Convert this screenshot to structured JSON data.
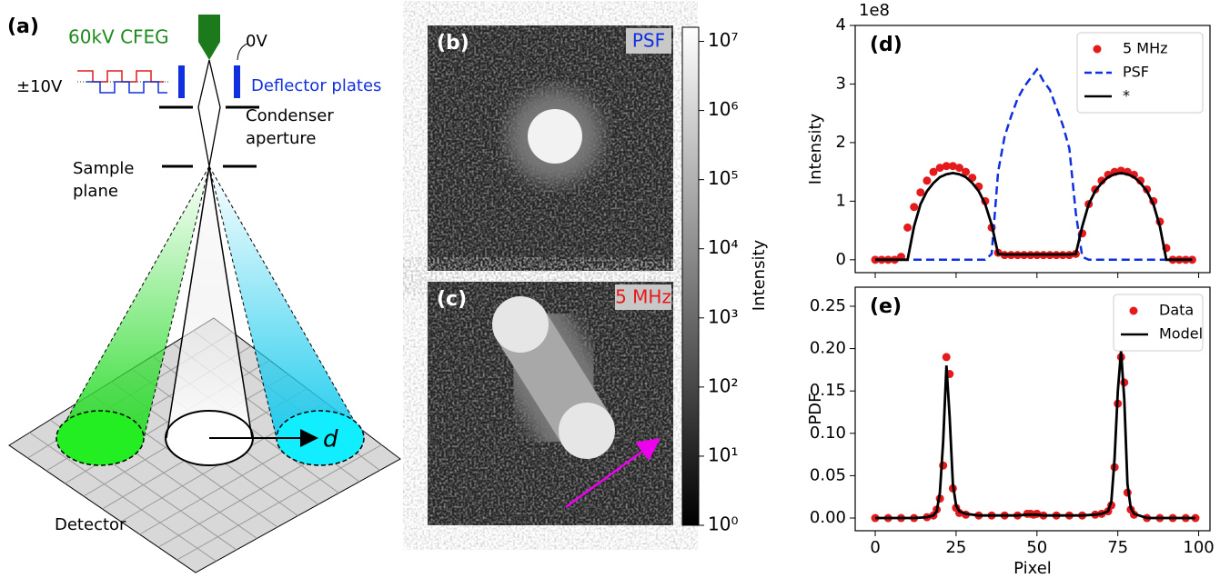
{
  "diagram": {
    "panel_label": "(a)",
    "source": "60kV CFEG",
    "voltage": "±10V",
    "ground": "0V",
    "deflector": "Deflector plates",
    "condenser": [
      "Condenser",
      "aperture"
    ],
    "sample": [
      "Sample",
      "plane"
    ],
    "displacement": "d",
    "detector": "Detector"
  },
  "images": [
    {
      "panel_label": "(b)",
      "tag": "PSF"
    },
    {
      "panel_label": "(c)",
      "tag": "5 MHz"
    }
  ],
  "colorbar": {
    "label": "Intensity",
    "scale": "log",
    "lim": [
      1,
      16000000
    ],
    "ticks": [
      {
        "value": 1,
        "label": "10⁰"
      },
      {
        "value": 10,
        "label": "10¹"
      },
      {
        "value": 100,
        "label": "10²"
      },
      {
        "value": 1000,
        "label": "10³"
      },
      {
        "value": 10000,
        "label": "10⁴"
      },
      {
        "value": 100000,
        "label": "10⁵"
      },
      {
        "value": 1000000,
        "label": "10⁶"
      },
      {
        "value": 10000000,
        "label": "10⁷"
      }
    ]
  },
  "chart_data": [
    {
      "type": "line",
      "panel_label": "(d)",
      "ylabel": "Intensity",
      "offset_label": "1e8",
      "xlim": [
        -6.2,
        103.5
      ],
      "ylim": [
        -0.22,
        4
      ],
      "xticks": [
        0,
        25,
        50,
        75,
        100
      ],
      "show_xtick_labels": false,
      "yticks": [
        0,
        1,
        2,
        3,
        4
      ],
      "legend": "upper right",
      "x": [
        0,
        2,
        4,
        6,
        8,
        10,
        12,
        14,
        16,
        18,
        20,
        22,
        24,
        26,
        28,
        30,
        32,
        34,
        36,
        38,
        40,
        42,
        44,
        46,
        48,
        50,
        52,
        54,
        56,
        58,
        60,
        62,
        64,
        66,
        68,
        70,
        72,
        74,
        76,
        78,
        80,
        82,
        84,
        86,
        88,
        90,
        92,
        94,
        96,
        98
      ],
      "series": [
        {
          "name": "5 MHz",
          "style": "dots",
          "color": "#e41a1c",
          "values": [
            0,
            0,
            0,
            0,
            0.05,
            0.55,
            0.9,
            1.15,
            1.35,
            1.5,
            1.57,
            1.6,
            1.6,
            1.57,
            1.5,
            1.4,
            1.25,
            1.0,
            0.55,
            0.12,
            0.08,
            0.08,
            0.08,
            0.08,
            0.08,
            0.08,
            0.08,
            0.08,
            0.08,
            0.08,
            0.08,
            0.1,
            0.45,
            0.95,
            1.2,
            1.35,
            1.45,
            1.5,
            1.52,
            1.5,
            1.45,
            1.35,
            1.2,
            1.0,
            0.65,
            0.2,
            0,
            0,
            0,
            0
          ]
        },
        {
          "name": "PSF",
          "style": "dashed",
          "color": "#1030e0",
          "values": [
            0,
            0,
            0,
            0,
            0,
            0,
            0,
            0,
            0,
            0,
            0,
            0,
            0,
            0,
            0,
            0,
            0,
            0,
            0.1,
            1.5,
            2.1,
            2.45,
            2.75,
            2.95,
            3.1,
            3.25,
            3.05,
            2.9,
            2.6,
            2.3,
            1.9,
            0.8,
            0.05,
            0,
            0,
            0,
            0,
            0,
            0,
            0,
            0,
            0,
            0,
            0,
            0,
            0,
            0,
            0,
            0,
            0
          ]
        },
        {
          "name": "*",
          "style": "solid",
          "color": "#000000",
          "values": [
            0,
            0,
            0,
            0,
            0,
            0,
            0.57,
            0.95,
            1.17,
            1.31,
            1.41,
            1.46,
            1.48,
            1.46,
            1.41,
            1.31,
            1.17,
            0.95,
            0.6,
            0.1,
            0.09,
            0.09,
            0.09,
            0.09,
            0.09,
            0.09,
            0.09,
            0.09,
            0.09,
            0.09,
            0.09,
            0.1,
            0.57,
            0.95,
            1.17,
            1.31,
            1.41,
            1.46,
            1.48,
            1.46,
            1.41,
            1.31,
            1.17,
            0.95,
            0.57,
            0,
            0,
            0,
            0,
            0
          ]
        }
      ]
    },
    {
      "type": "line",
      "panel_label": "(e)",
      "ylabel": "PDF",
      "xlabel": "Pixel",
      "xlim": [
        -6.2,
        103.5
      ],
      "ylim": [
        -0.015,
        0.2725
      ],
      "xticks": [
        0,
        25,
        50,
        75,
        100
      ],
      "show_xtick_labels": true,
      "yticks": [
        {
          "value": 0,
          "label": "0.00"
        },
        0.05,
        {
          "value": 0.1,
          "label": "0.10"
        },
        0.15,
        {
          "value": 0.2,
          "label": "0.20"
        },
        0.25
      ],
      "legend": "upper right",
      "x": [
        0,
        4,
        8,
        12,
        16,
        18,
        19,
        20,
        21,
        22,
        23,
        24,
        25,
        26,
        28,
        32,
        36,
        40,
        44,
        47,
        48,
        49,
        50,
        52,
        56,
        60,
        64,
        68,
        70,
        72,
        73,
        74,
        75,
        76,
        77,
        78,
        79,
        80,
        84,
        88,
        92,
        96,
        99
      ],
      "series": [
        {
          "name": "Data",
          "style": "dots",
          "color": "#e41a1c",
          "values": [
            0,
            0,
            0,
            0,
            0.001,
            0.003,
            0.01,
            0.023,
            0.062,
            0.19,
            0.17,
            0.035,
            0.012,
            0.006,
            0.004,
            0.003,
            0.003,
            0.003,
            0.003,
            0.005,
            0.005,
            0.004,
            0.005,
            0.003,
            0.003,
            0.003,
            0.003,
            0.004,
            0.005,
            0.008,
            0.015,
            0.06,
            0.135,
            0.19,
            0.16,
            0.03,
            0.01,
            0.004,
            0,
            0,
            0,
            0,
            0
          ]
        },
        {
          "name": "Model",
          "style": "solid",
          "color": "#000000",
          "values": [
            0,
            0,
            0,
            0,
            0.001,
            0.003,
            0.008,
            0.03,
            0.09,
            0.18,
            0.12,
            0.04,
            0.015,
            0.008,
            0.005,
            0.003,
            0.003,
            0.003,
            0.003,
            0.004,
            0.004,
            0.004,
            0.004,
            0.003,
            0.003,
            0.003,
            0.003,
            0.004,
            0.005,
            0.008,
            0.02,
            0.07,
            0.15,
            0.197,
            0.14,
            0.04,
            0.012,
            0.005,
            0,
            0,
            0,
            0,
            0
          ]
        }
      ]
    }
  ]
}
